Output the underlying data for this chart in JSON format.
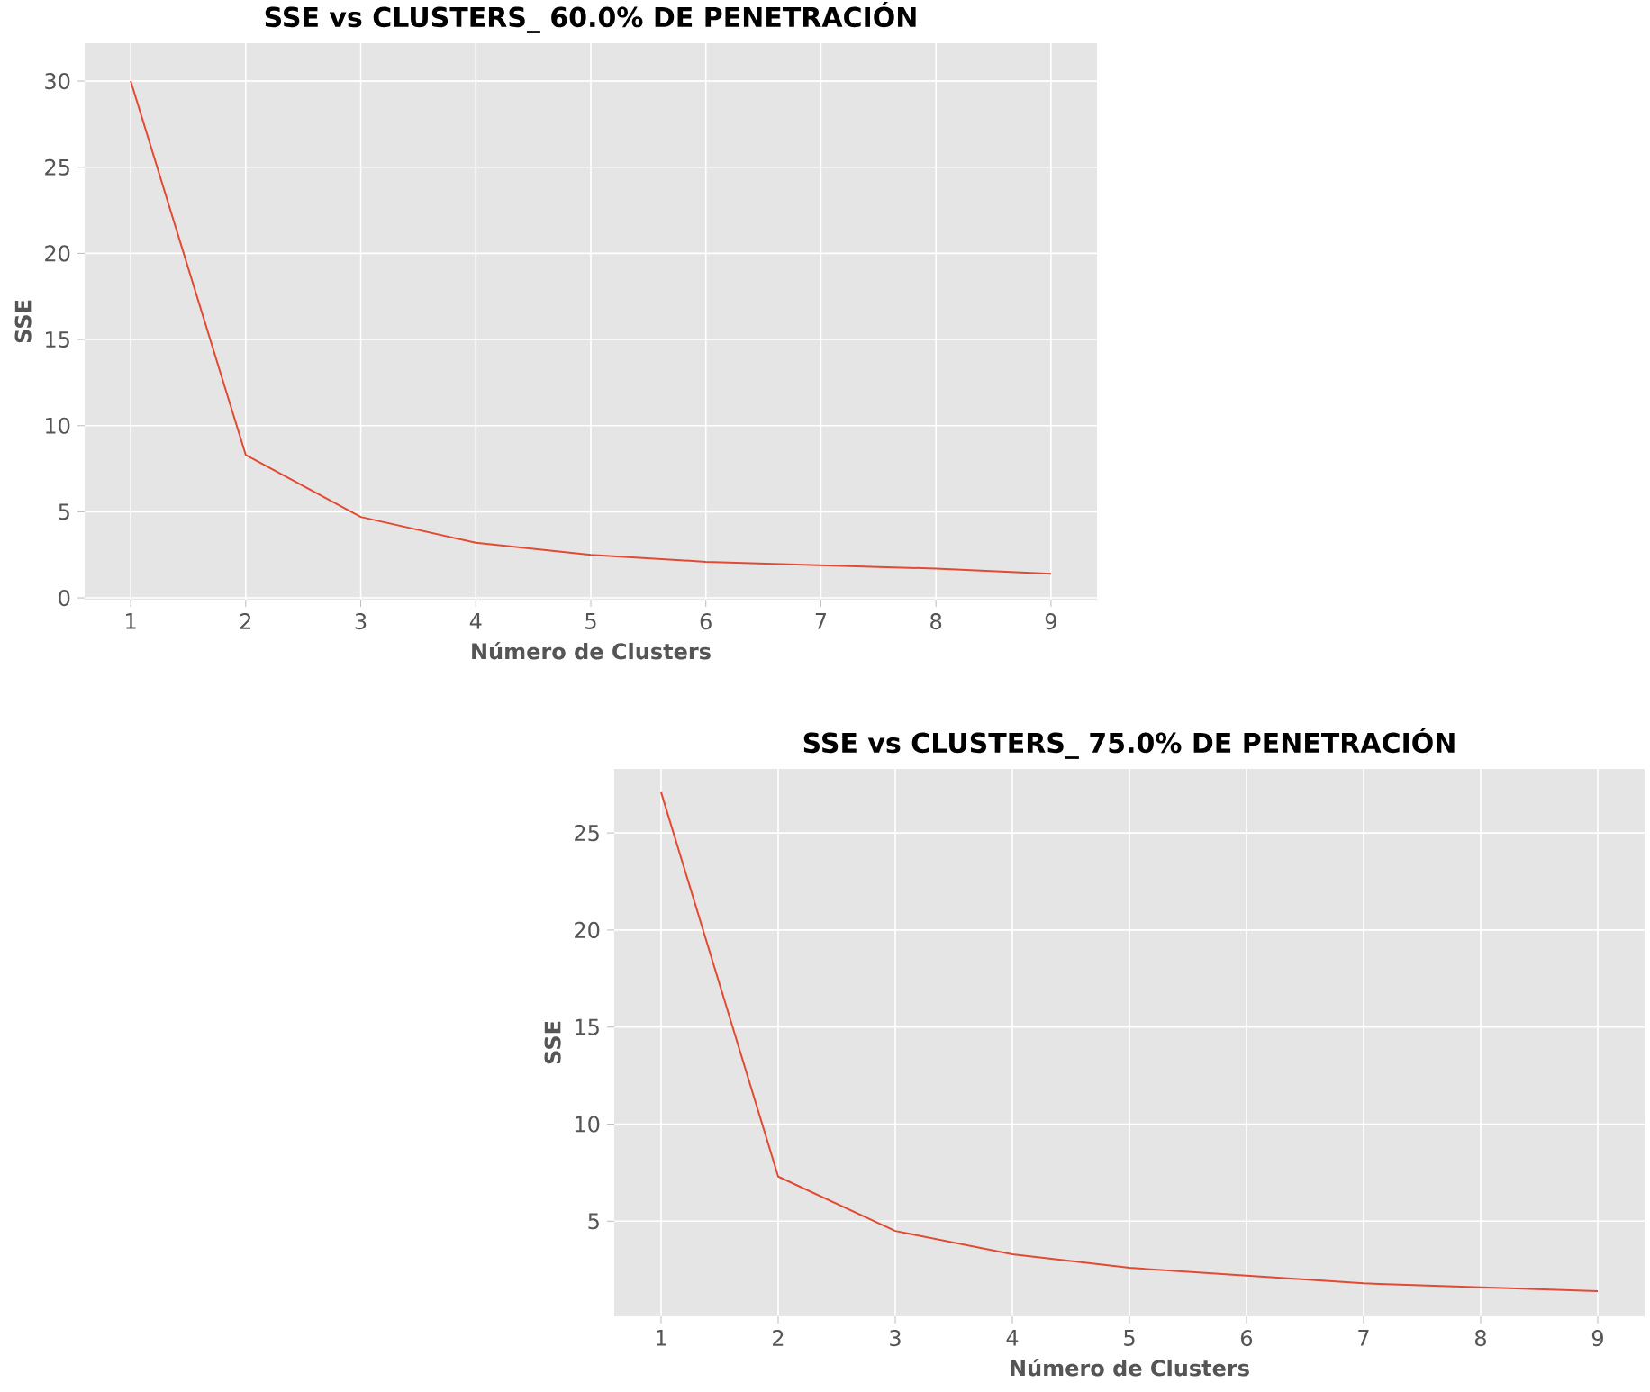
{
  "chart_data": [
    {
      "type": "line",
      "title": "SSE vs CLUSTERS_ 60.0% DE PENETRACIÓN",
      "xlabel": "Número de Clusters",
      "ylabel": "SSE",
      "x": [
        1,
        2,
        3,
        4,
        5,
        6,
        7,
        8,
        9
      ],
      "series": [
        {
          "color": "#e24a33",
          "values": [
            30,
            8.3,
            4.7,
            3.2,
            2.5,
            2.1,
            1.9,
            1.7,
            1.4
          ]
        }
      ],
      "xlim": [
        0.6,
        9.4
      ],
      "ylim": [
        -0.1,
        32.2
      ],
      "xticks": [
        1,
        2,
        3,
        4,
        5,
        6,
        7,
        8,
        9
      ],
      "yticks": [
        0,
        5,
        10,
        15,
        20,
        25,
        30
      ],
      "grid": true,
      "marker": "none",
      "line_style": "solid"
    },
    {
      "type": "line",
      "title": "SSE vs CLUSTERS_ 75.0% DE PENETRACIÓN",
      "xlabel": "Número de Clusters",
      "ylabel": "SSE",
      "x": [
        1,
        2,
        3,
        4,
        5,
        6,
        7,
        8,
        9
      ],
      "series": [
        {
          "color": "#e24a33",
          "values": [
            27.1,
            7.3,
            4.5,
            3.3,
            2.6,
            2.2,
            1.8,
            1.6,
            1.4
          ]
        }
      ],
      "xlim": [
        0.6,
        9.4
      ],
      "ylim": [
        0.1,
        28.3
      ],
      "xticks": [
        1,
        2,
        3,
        4,
        5,
        6,
        7,
        8,
        9
      ],
      "yticks": [
        5,
        10,
        15,
        20,
        25
      ],
      "grid": true,
      "marker": "none",
      "line_style": "solid"
    }
  ]
}
